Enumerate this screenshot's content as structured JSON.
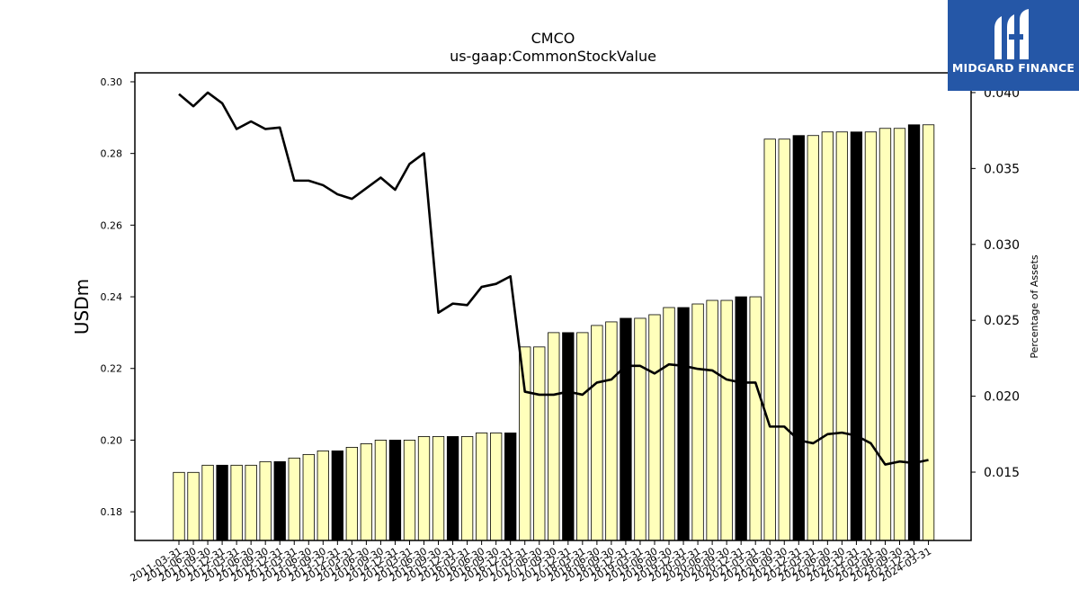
{
  "chart_data": {
    "type": "bar",
    "title": "CMCO",
    "subtitle": "us-gaap:CommonStockValue",
    "ylabel": "USDm",
    "y2label": "Percentage of Assets",
    "ylim": [
      0.172,
      0.3025
    ],
    "y2lim": [
      0.0105,
      0.0413
    ],
    "yticks": [
      "0.18",
      "0.20",
      "0.22",
      "0.24",
      "0.26",
      "0.28",
      "0.30"
    ],
    "y2ticks": [
      "0.015",
      "0.020",
      "0.025",
      "0.030",
      "0.035",
      "0.040"
    ],
    "categories": [
      "2011-03-31",
      "2011-06-30",
      "2011-09-30",
      "2011-12-31",
      "2012-03-31",
      "2012-06-30",
      "2012-09-30",
      "2012-12-31",
      "2013-03-31",
      "2013-06-30",
      "2013-09-30",
      "2013-12-31",
      "2014-03-31",
      "2014-06-30",
      "2014-09-30",
      "2014-12-31",
      "2015-03-31",
      "2015-06-30",
      "2015-09-30",
      "2015-12-31",
      "2016-03-31",
      "2016-06-30",
      "2016-09-30",
      "2016-12-31",
      "2017-03-31",
      "2017-06-30",
      "2017-09-30",
      "2017-12-31",
      "2018-03-31",
      "2018-06-30",
      "2018-09-30",
      "2018-12-31",
      "2019-03-31",
      "2019-06-30",
      "2019-09-30",
      "2019-12-31",
      "2020-03-31",
      "2020-06-30",
      "2020-09-30",
      "2020-12-31",
      "2021-03-31",
      "2021-06-30",
      "2021-09-30",
      "2021-12-31",
      "2022-03-31",
      "2022-06-30",
      "2022-09-30",
      "2022-12-31",
      "2023-03-31",
      "2023-06-30",
      "2023-09-30",
      "2023-12-31",
      "2024-03-31"
    ],
    "series": [
      {
        "type": "bar",
        "values": [
          0.191,
          0.191,
          0.193,
          0.193,
          0.193,
          0.193,
          0.194,
          0.194,
          0.195,
          0.196,
          0.197,
          0.197,
          0.198,
          0.199,
          0.2,
          0.2,
          0.2,
          0.201,
          0.201,
          0.201,
          0.201,
          0.202,
          0.202,
          0.202,
          0.226,
          0.226,
          0.23,
          0.23,
          0.23,
          0.232,
          0.233,
          0.234,
          0.234,
          0.235,
          0.237,
          0.237,
          0.238,
          0.239,
          0.239,
          0.24,
          0.24,
          0.284,
          0.284,
          0.285,
          0.285,
          0.286,
          0.286,
          0.286,
          0.286,
          0.287,
          0.287,
          0.288,
          0.288
        ],
        "highlight": [
          3,
          7,
          11,
          15,
          19,
          23,
          27,
          31,
          35,
          39,
          43,
          47,
          51
        ],
        "color": "#ffffbb",
        "highlight_color": "#000000"
      },
      {
        "type": "line",
        "axis": "right",
        "values": [
          0.0399,
          0.0391,
          0.04,
          0.0393,
          0.0376,
          0.0381,
          0.0376,
          0.0377,
          0.0342,
          0.0342,
          0.0339,
          0.0333,
          0.033,
          0.0337,
          0.0344,
          0.0336,
          0.0353,
          0.036,
          0.0255,
          0.0261,
          0.026,
          0.0272,
          0.0274,
          0.0279,
          0.0203,
          0.0201,
          0.0201,
          0.0203,
          0.0201,
          0.0209,
          0.0211,
          0.022,
          0.022,
          0.0215,
          0.0221,
          0.022,
          0.0218,
          0.0217,
          0.0211,
          0.0209,
          0.0209,
          0.018,
          0.018,
          0.0171,
          0.0169,
          0.0175,
          0.0176,
          0.0174,
          0.0169,
          0.0155,
          0.0157,
          0.0156,
          0.0158
        ],
        "color": "#000000"
      }
    ]
  },
  "logo": {
    "name": "MIDGARD FINANCE",
    "color": "#2557a7"
  }
}
